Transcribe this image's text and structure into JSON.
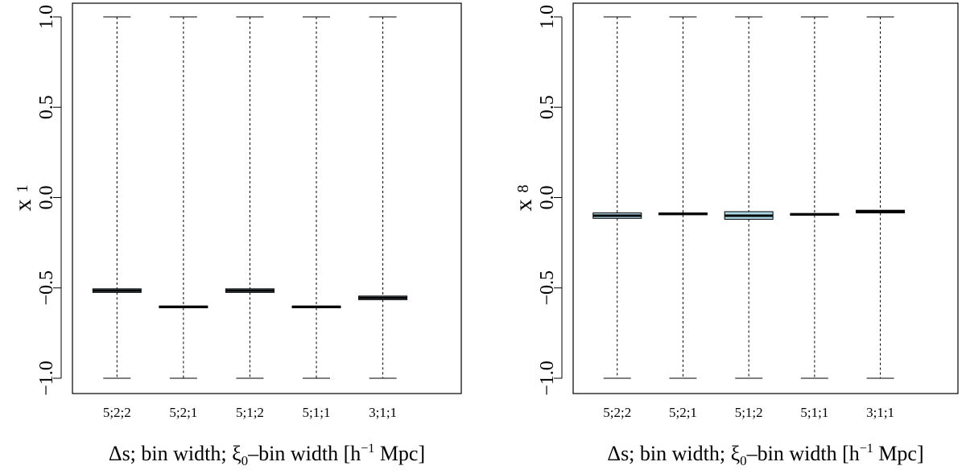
{
  "chart_data": [
    {
      "type": "boxplot",
      "ylabel": {
        "main": "x",
        "sub": "1"
      },
      "xlabel": {
        "pre": "Δs; bin width; ξ",
        "sub": "0",
        "mid": "–bin width [h",
        "sup": "−1",
        "post": " Mpc]"
      },
      "ylim": [
        -1.0,
        1.0
      ],
      "yticks": [
        "−1.0",
        "−0.5",
        "0.0",
        "0.5",
        "1.0"
      ],
      "categories": [
        "5;2;2",
        "5;2;1",
        "5;1;2",
        "5;1;1",
        "3;1;1"
      ],
      "boxes": [
        {
          "whisker_low": -1.0,
          "q1": -0.525,
          "median": -0.515,
          "q3": -0.505,
          "whisker_high": 1.0
        },
        {
          "whisker_low": -1.0,
          "q1": -0.61,
          "median": -0.605,
          "q3": -0.6,
          "whisker_high": 1.0
        },
        {
          "whisker_low": -1.0,
          "q1": -0.525,
          "median": -0.515,
          "q3": -0.505,
          "whisker_high": 1.0
        },
        {
          "whisker_low": -1.0,
          "q1": -0.61,
          "median": -0.605,
          "q3": -0.6,
          "whisker_high": 1.0
        },
        {
          "whisker_low": -1.0,
          "q1": -0.565,
          "median": -0.555,
          "q3": -0.545,
          "whisker_high": 1.0
        }
      ],
      "box_color": "#add8e6"
    },
    {
      "type": "boxplot",
      "ylabel": {
        "main": "x",
        "sub": "8"
      },
      "xlabel": {
        "pre": "Δs; bin width; ξ",
        "sub": "0",
        "mid": "–bin width [h",
        "sup": "−1",
        "post": " Mpc]"
      },
      "ylim": [
        -1.0,
        1.0
      ],
      "yticks": [
        "−1.0",
        "−0.5",
        "0.0",
        "0.5",
        "1.0"
      ],
      "categories": [
        "5;2;2",
        "5;2;1",
        "5;1;2",
        "5;1;1",
        "3;1;1"
      ],
      "boxes": [
        {
          "whisker_low": -1.0,
          "q1": -0.115,
          "median": -0.1,
          "q3": -0.085,
          "whisker_high": 1.0
        },
        {
          "whisker_low": -1.0,
          "q1": -0.095,
          "median": -0.09,
          "q3": -0.085,
          "whisker_high": 1.0
        },
        {
          "whisker_low": -1.0,
          "q1": -0.12,
          "median": -0.1,
          "q3": -0.078,
          "whisker_high": 1.0
        },
        {
          "whisker_low": -1.0,
          "q1": -0.098,
          "median": -0.093,
          "q3": -0.088,
          "whisker_high": 1.0
        },
        {
          "whisker_low": -1.0,
          "q1": -0.085,
          "median": -0.078,
          "q3": -0.07,
          "whisker_high": 1.0
        }
      ],
      "box_color": "#add8e6"
    }
  ]
}
